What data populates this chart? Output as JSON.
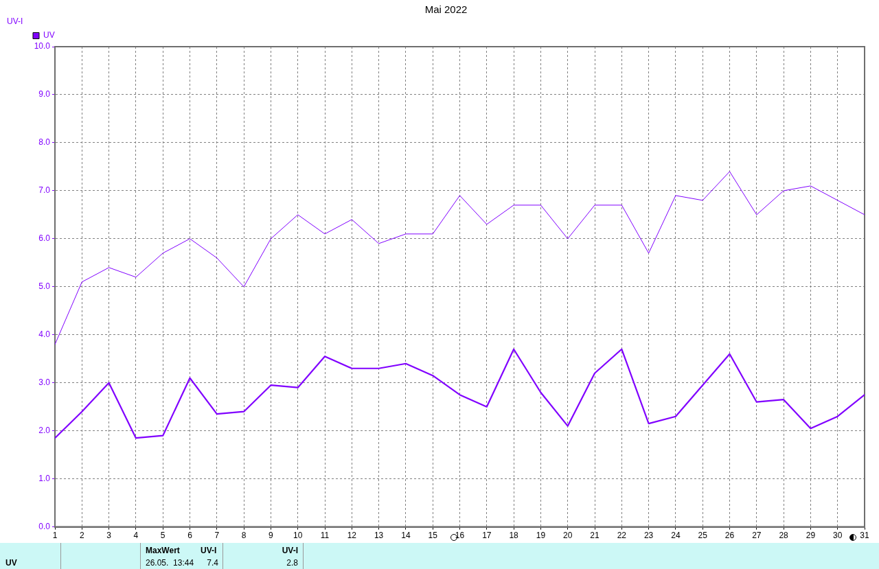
{
  "chart_data": {
    "type": "line",
    "title": "Mai 2022",
    "ylabel": "UV-I",
    "x": [
      1,
      2,
      3,
      4,
      5,
      6,
      7,
      8,
      9,
      10,
      11,
      12,
      13,
      14,
      15,
      16,
      17,
      18,
      19,
      20,
      21,
      22,
      23,
      24,
      25,
      26,
      27,
      28,
      29,
      30,
      31
    ],
    "series": [
      {
        "name": "UV",
        "color": "#8000ff",
        "values": [
          1.85,
          2.4,
          3.0,
          1.85,
          1.9,
          3.1,
          2.35,
          2.4,
          2.95,
          2.9,
          3.55,
          3.3,
          3.3,
          3.4,
          3.15,
          2.75,
          2.5,
          3.7,
          2.8,
          2.1,
          3.2,
          3.7,
          2.15,
          2.3,
          2.95,
          3.6,
          2.6,
          2.65,
          2.05,
          2.3,
          2.75
        ]
      },
      {
        "color": "#8000ff",
        "values": [
          3.8,
          5.1,
          5.4,
          5.2,
          5.7,
          6.0,
          5.6,
          5.0,
          6.0,
          6.5,
          6.1,
          6.4,
          5.9,
          6.1,
          6.1,
          6.9,
          6.3,
          6.7,
          6.7,
          6.0,
          6.7,
          6.7,
          5.7,
          6.9,
          6.8,
          7.4,
          6.5,
          7.0,
          7.1,
          6.8,
          6.5
        ]
      }
    ],
    "xlim": [
      1,
      31
    ],
    "xticks": [
      1,
      2,
      3,
      4,
      5,
      6,
      7,
      8,
      9,
      10,
      11,
      12,
      13,
      14,
      15,
      16,
      17,
      18,
      19,
      20,
      21,
      22,
      23,
      24,
      25,
      26,
      27,
      28,
      29,
      30,
      31
    ],
    "ylim": [
      0,
      10
    ],
    "yticks": [
      {
        "value": 0,
        "label": "0.0"
      },
      {
        "value": 1,
        "label": "1.0"
      },
      {
        "value": 2,
        "label": "2.0"
      },
      {
        "value": 3,
        "label": "3.0"
      },
      {
        "value": 4,
        "label": "4.0"
      },
      {
        "value": 5,
        "label": "5.0"
      },
      {
        "value": 6,
        "label": "6.0"
      },
      {
        "value": 7,
        "label": "7.0"
      },
      {
        "value": 8,
        "label": "8.0"
      },
      {
        "value": 9,
        "label": "9.0"
      },
      {
        "value": 10,
        "label": "10.0"
      }
    ],
    "grid": true,
    "legend": "top left",
    "marker": "none",
    "line_style": "solid",
    "annotations": [
      "UV",
      "MaxWert",
      "UV-I",
      "26.05.  13:44",
      "7.4",
      "UV-I",
      "2.8"
    ]
  }
}
